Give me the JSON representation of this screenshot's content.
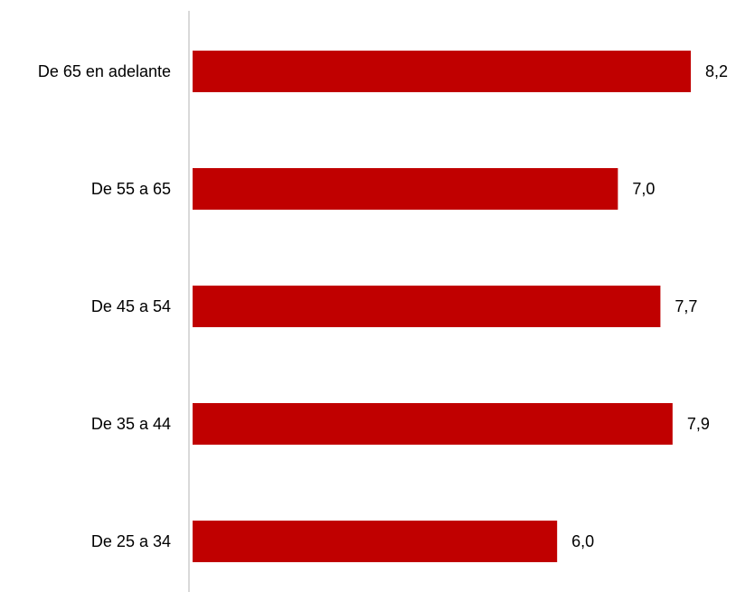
{
  "chart_data": {
    "type": "bar",
    "orientation": "horizontal",
    "categories": [
      "De 65 en adelante",
      "De 55 a 65",
      "De 45 a 54",
      "De 35 a 44",
      "De 25 a 34"
    ],
    "values": [
      8.2,
      7.0,
      7.7,
      7.9,
      6.0
    ],
    "value_labels": [
      "8,2",
      "7,0",
      "7,7",
      "7,9",
      "6,0"
    ],
    "title": "",
    "xlabel": "",
    "ylabel": "",
    "xlim": [
      0,
      8.2
    ],
    "grid": false,
    "legend": "none",
    "bar_color": "#c00000",
    "axis_color": "#d9d9d9"
  }
}
